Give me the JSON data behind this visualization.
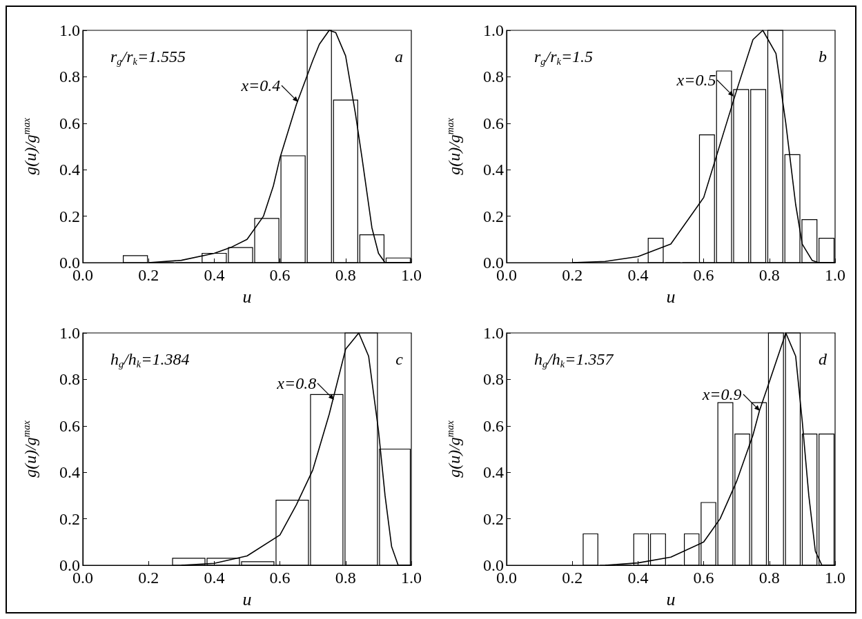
{
  "chart_data": [
    {
      "type": "histogram",
      "xlabel": "u",
      "ylabel": "g(u)/g$^{max}$",
      "xlim": [
        0,
        1
      ],
      "ylim": [
        0,
        1
      ],
      "xticks": [
        {
          "value": 0,
          "label": "0.0"
        },
        {
          "value": 0.2,
          "label": "0.2"
        },
        {
          "value": 0.4,
          "label": "0.4"
        },
        {
          "value": 0.6,
          "label": "0.6"
        },
        {
          "value": 0.8,
          "label": "0.8"
        },
        {
          "value": 1,
          "label": "1.0"
        }
      ],
      "yticks": [
        {
          "value": 0,
          "label": "0.0"
        },
        {
          "value": 0.2,
          "label": "0.2"
        },
        {
          "value": 0.4,
          "label": "0.4"
        },
        {
          "value": 0.6,
          "label": "0.6"
        },
        {
          "value": 0.8,
          "label": "0.8"
        },
        {
          "value": 1,
          "label": "1.0"
        }
      ],
      "annotations": [
        "r$_{g}$/r$_{k}$=1.555",
        "a",
        {
          "text": "x=0.4",
          "x": 0.656,
          "y": 0.69
        }
      ],
      "series": [
        {
          "color": "#000000",
          "bins": [
            0.12,
            0.2,
            0.28,
            0.36,
            0.44,
            0.52,
            0.6,
            0.68,
            0.76,
            0.84,
            0.92,
            1.0
          ],
          "values": [
            0.03,
            0,
            0,
            0.04,
            0.065,
            0.19,
            0.46,
            1.0,
            0.7,
            0.12,
            0.02
          ]
        },
        {
          "type": "line",
          "color": "#000000",
          "x": [
            0.2,
            0.3,
            0.4,
            0.45,
            0.5,
            0.55,
            0.58,
            0.6,
            0.65,
            0.7,
            0.72,
            0.75,
            0.77,
            0.8,
            0.83,
            0.85,
            0.88,
            0.9,
            0.92,
            1.0
          ],
          "values": [
            0,
            0.01,
            0.04,
            0.065,
            0.1,
            0.2,
            0.33,
            0.45,
            0.68,
            0.87,
            0.94,
            1.0,
            0.99,
            0.89,
            0.64,
            0.45,
            0.15,
            0.04,
            0,
            0
          ]
        }
      ]
    },
    {
      "type": "histogram",
      "xlabel": "u",
      "ylabel": "g(u)/g$^{max}$",
      "xlim": [
        0,
        1
      ],
      "ylim": [
        0,
        1
      ],
      "xticks": [
        {
          "value": 0,
          "label": "0.0"
        },
        {
          "value": 0.2,
          "label": "0.2"
        },
        {
          "value": 0.4,
          "label": "0.4"
        },
        {
          "value": 0.6,
          "label": "0.6"
        },
        {
          "value": 0.8,
          "label": "0.8"
        },
        {
          "value": 1,
          "label": "1.0"
        }
      ],
      "yticks": [
        {
          "value": 0,
          "label": "0.0"
        },
        {
          "value": 0.2,
          "label": "0.2"
        },
        {
          "value": 0.4,
          "label": "0.4"
        },
        {
          "value": 0.6,
          "label": "0.6"
        },
        {
          "value": 0.8,
          "label": "0.8"
        },
        {
          "value": 1,
          "label": "1.0"
        }
      ],
      "annotations": [
        "r$_{g}$/r$_{k}$=1.5",
        "b",
        {
          "text": "x=0.5",
          "x": 0.692,
          "y": 0.715
        }
      ],
      "series": [
        {
          "color": "#000000",
          "bins": [
            0.428,
            0.48,
            0.532,
            0.584,
            0.636,
            0.688,
            0.74,
            0.792,
            0.844,
            0.896,
            0.948,
            1.0
          ],
          "values": [
            0.105,
            0,
            0,
            0.55,
            0.825,
            0.745,
            0.745,
            1.0,
            0.465,
            0.185,
            0.105
          ]
        },
        {
          "type": "line",
          "color": "#000000",
          "x": [
            0.2,
            0.3,
            0.4,
            0.5,
            0.6,
            0.65,
            0.7,
            0.75,
            0.78,
            0.82,
            0.85,
            0.88,
            0.9,
            0.93,
            0.95,
            1.0
          ],
          "values": [
            0,
            0.005,
            0.026,
            0.08,
            0.28,
            0.51,
            0.74,
            0.96,
            1.0,
            0.9,
            0.6,
            0.25,
            0.08,
            0.01,
            0,
            0
          ]
        }
      ]
    },
    {
      "type": "histogram",
      "xlabel": "u",
      "ylabel": "g(u)/g$^{max}$",
      "xlim": [
        0,
        1
      ],
      "ylim": [
        0,
        1
      ],
      "xticks": [
        {
          "value": 0,
          "label": "0.0"
        },
        {
          "value": 0.2,
          "label": "0.2"
        },
        {
          "value": 0.4,
          "label": "0.4"
        },
        {
          "value": 0.6,
          "label": "0.6"
        },
        {
          "value": 0.8,
          "label": "0.8"
        },
        {
          "value": 1,
          "label": "1.0"
        }
      ],
      "yticks": [
        {
          "value": 0,
          "label": "0.0"
        },
        {
          "value": 0.2,
          "label": "0.2"
        },
        {
          "value": 0.4,
          "label": "0.4"
        },
        {
          "value": 0.6,
          "label": "0.6"
        },
        {
          "value": 0.8,
          "label": "0.8"
        },
        {
          "value": 1,
          "label": "1.0"
        }
      ],
      "annotations": [
        "h$_{g}$/h$_{k}$=1.384",
        "c",
        {
          "text": "x=0.8",
          "x": 0.765,
          "y": 0.713
        }
      ],
      "series": [
        {
          "color": "#000000",
          "bins": [
            0.27,
            0.375,
            0.48,
            0.585,
            0.69,
            0.795,
            0.9,
            1.0
          ],
          "values": [
            0.03,
            0.03,
            0.015,
            0.28,
            0.735,
            1.0,
            0.5
          ]
        },
        {
          "type": "line",
          "color": "#000000",
          "x": [
            0.3,
            0.4,
            0.5,
            0.6,
            0.65,
            0.7,
            0.75,
            0.8,
            0.84,
            0.87,
            0.9,
            0.92,
            0.94,
            0.96,
            1.0
          ],
          "values": [
            0,
            0.008,
            0.04,
            0.13,
            0.26,
            0.41,
            0.65,
            0.93,
            1.0,
            0.9,
            0.58,
            0.3,
            0.08,
            0,
            0
          ]
        }
      ]
    },
    {
      "type": "histogram",
      "xlabel": "u",
      "ylabel": "g(u)/g$^{max}$",
      "xlim": [
        0,
        1
      ],
      "ylim": [
        0,
        1
      ],
      "xticks": [
        {
          "value": 0,
          "label": "0.0"
        },
        {
          "value": 0.2,
          "label": "0.2"
        },
        {
          "value": 0.4,
          "label": "0.4"
        },
        {
          "value": 0.6,
          "label": "0.6"
        },
        {
          "value": 0.8,
          "label": "0.8"
        },
        {
          "value": 1,
          "label": "1.0"
        }
      ],
      "yticks": [
        {
          "value": 0,
          "label": "0.0"
        },
        {
          "value": 0.2,
          "label": "0.2"
        },
        {
          "value": 0.4,
          "label": "0.4"
        },
        {
          "value": 0.6,
          "label": "0.6"
        },
        {
          "value": 0.8,
          "label": "0.8"
        },
        {
          "value": 1,
          "label": "1.0"
        }
      ],
      "annotations": [
        "h$_{g}$/h$_{k}$=1.357",
        "d",
        {
          "text": "x=0.9",
          "x": 0.77,
          "y": 0.666
        }
      ],
      "series": [
        {
          "color": "#000000",
          "bins": [
            0.23,
            0.281,
            0.333,
            0.384,
            0.435,
            0.487,
            0.538,
            0.589,
            0.64,
            0.692,
            0.743,
            0.794,
            0.846,
            0.897,
            0.948,
            1.0
          ],
          "values": [
            0.135,
            0,
            0,
            0.135,
            0.135,
            0,
            0.135,
            0.27,
            0.7,
            0.565,
            0.7,
            1.0,
            1.0,
            0.565,
            0.565
          ]
        },
        {
          "type": "line",
          "color": "#000000",
          "x": [
            0.3,
            0.4,
            0.5,
            0.6,
            0.65,
            0.7,
            0.75,
            0.77,
            0.8,
            0.85,
            0.88,
            0.9,
            0.92,
            0.94,
            0.96,
            1.0
          ],
          "values": [
            0,
            0.01,
            0.035,
            0.1,
            0.2,
            0.36,
            0.56,
            0.666,
            0.79,
            1.0,
            0.9,
            0.62,
            0.3,
            0.06,
            0,
            0
          ]
        }
      ]
    }
  ]
}
